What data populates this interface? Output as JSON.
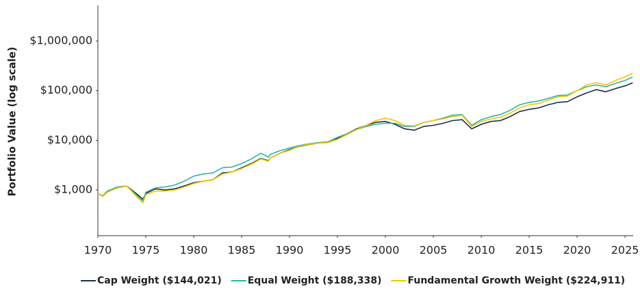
{
  "chart_data": {
    "type": "line",
    "y_label": "Portfolio Value (log scale)",
    "log_y": true,
    "legend": "bottom",
    "x": [
      1970,
      1970.5,
      1971,
      1972,
      1973,
      1974,
      1974.7,
      1975,
      1976,
      1977,
      1978,
      1979,
      1980,
      1981,
      1982,
      1983,
      1984,
      1985,
      1986,
      1987,
      1987.8,
      1988,
      1989,
      1990,
      1991,
      1992,
      1993,
      1994,
      1995,
      1996,
      1997,
      1998,
      1999,
      2000,
      2001,
      2002,
      2003,
      2004,
      2005,
      2006,
      2007,
      2008,
      2009,
      2010,
      2011,
      2012,
      2013,
      2014,
      2015,
      2016,
      2017,
      2018,
      2019,
      2020,
      2021,
      2022,
      2023,
      2024,
      2025,
      2025.8
    ],
    "series": [
      {
        "name": "Cap Weight ($144,021)",
        "color": "#1f2a44",
        "values": [
          850,
          750,
          950,
          1100,
          1200,
          850,
          650,
          850,
          1050,
          1000,
          1050,
          1200,
          1400,
          1500,
          1600,
          2200,
          2300,
          2800,
          3400,
          4300,
          3900,
          4400,
          5500,
          6500,
          7500,
          8200,
          8800,
          9000,
          11000,
          13500,
          17000,
          20000,
          23000,
          24000,
          21000,
          17000,
          16000,
          19000,
          20000,
          22000,
          25000,
          26000,
          17000,
          21000,
          24000,
          25000,
          30000,
          38000,
          42000,
          45000,
          52000,
          58000,
          60000,
          75000,
          90000,
          105000,
          95000,
          110000,
          125000,
          144021
        ]
      },
      {
        "name": "Equal Weight ($188,338)",
        "color": "#2bb5a0",
        "values": [
          850,
          760,
          950,
          1150,
          1200,
          800,
          600,
          900,
          1100,
          1150,
          1250,
          1500,
          1900,
          2100,
          2200,
          2800,
          2900,
          3400,
          4200,
          5500,
          4600,
          5200,
          6200,
          7000,
          7800,
          8500,
          9000,
          9300,
          11500,
          13500,
          16500,
          19000,
          21000,
          22000,
          22000,
          19000,
          19000,
          23000,
          25000,
          28000,
          32000,
          33000,
          20000,
          26000,
          30000,
          33000,
          40000,
          52000,
          58000,
          62000,
          70000,
          80000,
          82000,
          100000,
          120000,
          130000,
          120000,
          140000,
          160000,
          188338
        ]
      },
      {
        "name": "Fundamental Growth Weight ($224,911)",
        "color": "#f2c500",
        "values": [
          850,
          740,
          900,
          1100,
          1200,
          750,
          550,
          800,
          950,
          950,
          1000,
          1150,
          1350,
          1500,
          1600,
          2100,
          2300,
          2700,
          3300,
          4200,
          3800,
          4400,
          5500,
          6300,
          7600,
          8300,
          8800,
          9000,
          10500,
          13000,
          16500,
          20000,
          25000,
          28000,
          25000,
          20000,
          19500,
          23000,
          25000,
          27000,
          30000,
          32000,
          19000,
          24000,
          27000,
          29000,
          35000,
          45000,
          52000,
          55000,
          65000,
          75000,
          78000,
          100000,
          130000,
          145000,
          130000,
          160000,
          190000,
          224911
        ]
      }
    ],
    "xlim": [
      1970,
      2025.85
    ],
    "xticks": [
      1970,
      1975,
      1980,
      1985,
      1990,
      1995,
      2000,
      2005,
      2010,
      2015,
      2020,
      2025
    ],
    "ylim": [
      120,
      5200000
    ],
    "yticks": [
      {
        "value": 1000,
        "label": "$1,000"
      },
      {
        "value": 10000,
        "label": "$10,000"
      },
      {
        "value": 100000,
        "label": "$100,000"
      },
      {
        "value": 1000000,
        "label": "$1,000,000"
      }
    ]
  }
}
